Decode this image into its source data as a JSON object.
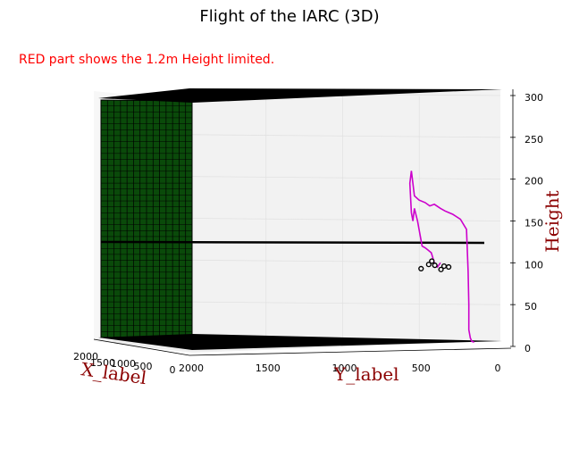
{
  "colors": {
    "annotation": "#ff0000",
    "axis_label": "#8b0000",
    "trajectory": "#cc00cc",
    "markers": "#000000",
    "wall": "#0a4a0a",
    "plane": "#000000",
    "pane_back": "#f2f2f2",
    "pane_side": "#f7f7f7"
  },
  "annotation": "RED part shows the 1.2m Height limited.",
  "chart_data": {
    "type": "scatter",
    "projection": "3d",
    "title": "Flight of the IARC (3D)",
    "xlabel": "X_label",
    "ylabel": "Y_label",
    "zlabel": "Height",
    "xticks": [
      "2000",
      "1500",
      "1000",
      "500",
      "0"
    ],
    "yticks": [
      "2000",
      "1500",
      "1000",
      "500",
      "0"
    ],
    "zticks": [
      "0",
      "50",
      "100",
      "150",
      "200",
      "250",
      "300"
    ],
    "xlim": [
      0,
      2000
    ],
    "ylim": [
      0,
      2000
    ],
    "zlim": [
      0,
      300
    ],
    "grid": true,
    "height_limit_plane_z": 120,
    "trajectory": {
      "y": [
        60,
        75,
        85,
        95,
        95,
        100,
        110,
        150,
        200,
        250,
        280,
        320,
        350,
        380,
        420,
        450,
        470,
        480,
        470,
        460,
        450,
        430,
        420,
        410,
        400,
        380,
        360,
        340,
        320,
        300,
        280
      ],
      "z": [
        5,
        6,
        10,
        20,
        50,
        90,
        140,
        152,
        158,
        162,
        165,
        170,
        168,
        172,
        175,
        180,
        210,
        195,
        160,
        150,
        165,
        150,
        140,
        130,
        120,
        118,
        115,
        112,
        100,
        95,
        100
      ]
    },
    "markers": {
      "y": [
        430,
        380,
        360,
        340,
        300,
        280,
        250
      ],
      "z": [
        93,
        98,
        102,
        97,
        92,
        96,
        95
      ]
    }
  }
}
